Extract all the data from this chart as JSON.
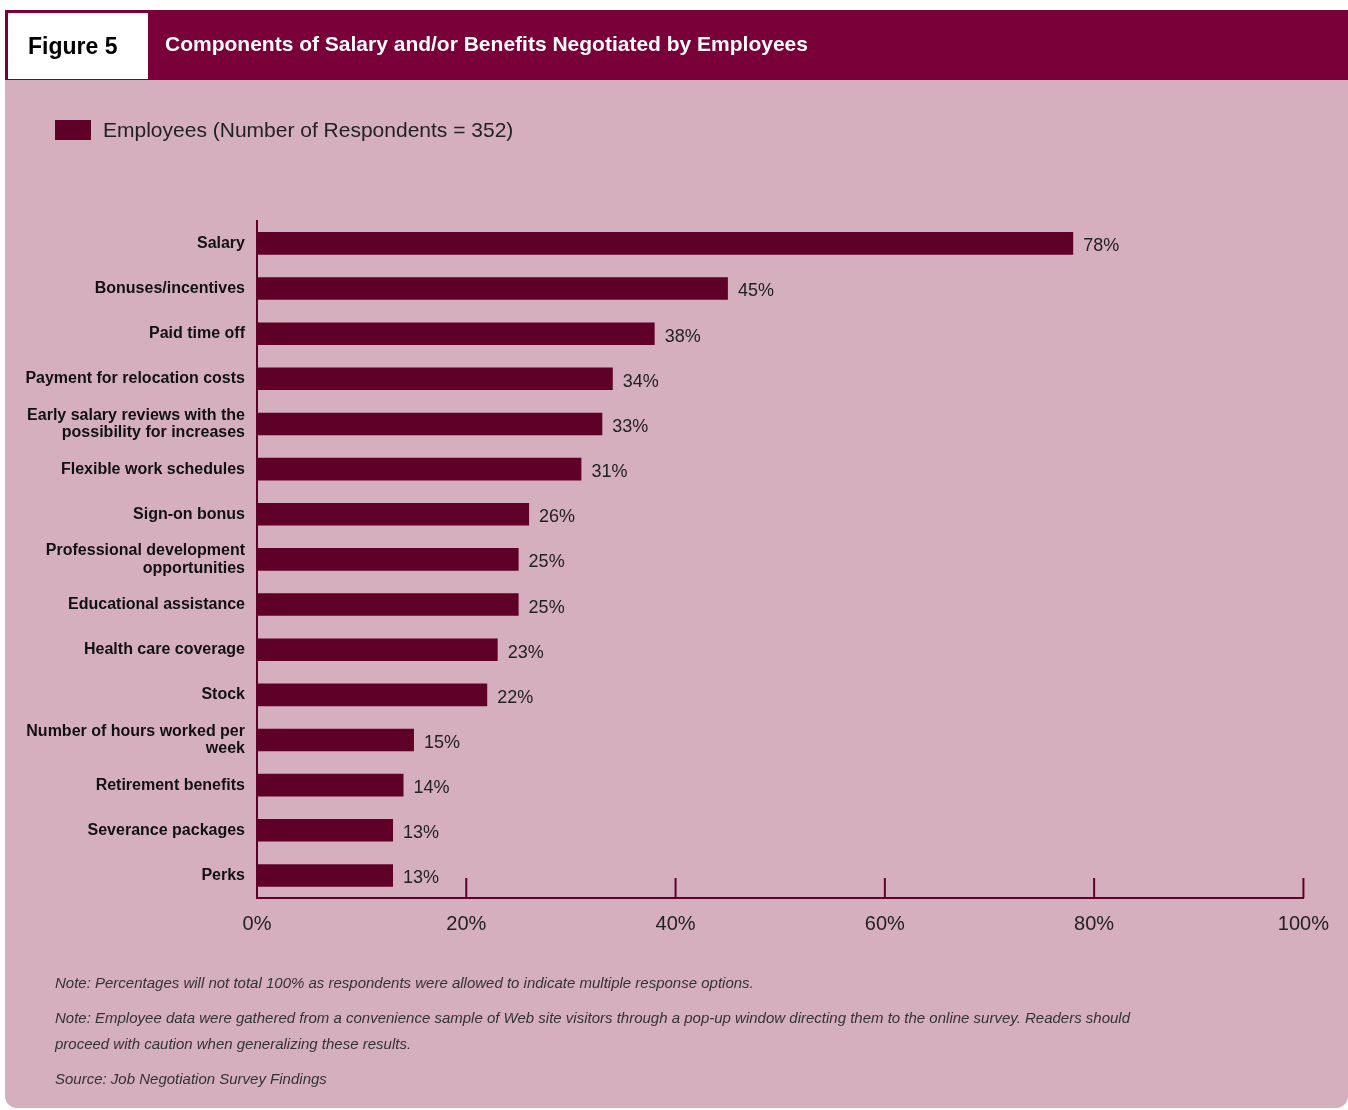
{
  "chart_data": {
    "type": "bar",
    "orientation": "horizontal",
    "title": "Components of Salary and/or Benefits Negotiated by Employees",
    "categories": [
      "Salary",
      "Bonuses/incentives",
      "Paid time off",
      "Payment for relocation costs",
      "Early salary reviews with the possibility for increases",
      "Flexible work schedules",
      "Sign-on bonus",
      "Professional development opportunities",
      "Educational assistance",
      "Health care coverage",
      "Stock",
      "Number of hours worked per week",
      "Retirement benefits",
      "Severance packages",
      "Perks"
    ],
    "series": [
      {
        "name": "Employees (Number of Respondents = 352)",
        "color": "#5f0028",
        "values": [
          78,
          45,
          38,
          34,
          33,
          31,
          26,
          25,
          25,
          23,
          22,
          15,
          14,
          13,
          13
        ],
        "value_labels": [
          "78%",
          "45%",
          "38%",
          "34%",
          "33%",
          "31%",
          "26%",
          "25%",
          "25%",
          "23%",
          "22%",
          "15%",
          "14%",
          "13%",
          "13%"
        ]
      }
    ],
    "xlim": [
      0,
      100
    ],
    "xticks": [
      {
        "value": 0,
        "label": "0%"
      },
      {
        "value": 20,
        "label": "20%"
      },
      {
        "value": 40,
        "label": "40%"
      },
      {
        "value": 60,
        "label": "60%"
      },
      {
        "value": 80,
        "label": "80%"
      },
      {
        "value": 100,
        "label": "100%"
      }
    ],
    "grid": false,
    "legend": "top left",
    "annotations": [
      "Figure 5",
      "Note: Percentages will not total 100% as respondents were allowed to indicate multiple response options.",
      "Note: Employee data were gathered from a convenience sample of Web site visitors through a pop-up window directing them to the online survey. Readers should proceed with caution when generalizing these results.",
      "Source: Job Negotiation Survey Findings"
    ]
  }
}
